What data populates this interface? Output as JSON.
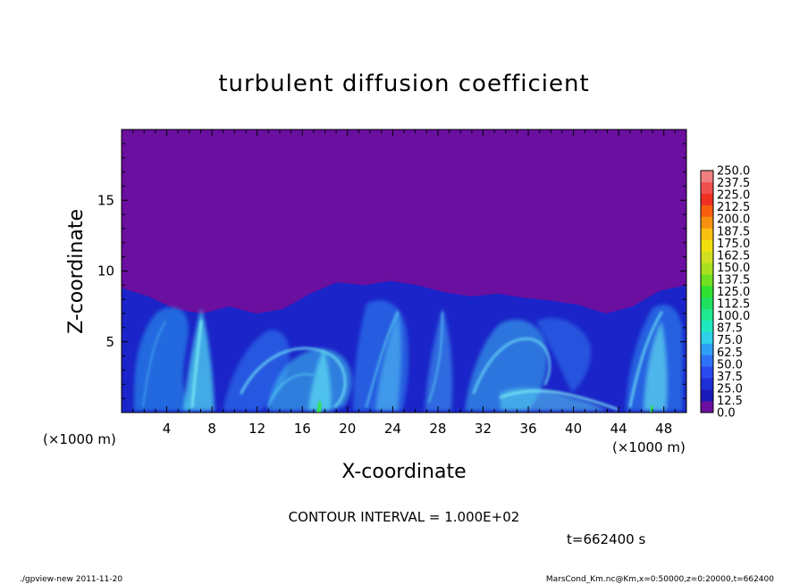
{
  "chart_data": {
    "type": "heatmap",
    "title": "turbulent diffusion coefficient",
    "xlabel": "X-coordinate",
    "ylabel": "Z-coordinate",
    "x_unit": "(×1000 m)",
    "y_unit": "(×1000 m)",
    "xlim": [
      0,
      50
    ],
    "ylim": [
      0,
      20
    ],
    "x_ticks": [
      4,
      8,
      12,
      16,
      20,
      24,
      28,
      32,
      36,
      40,
      44,
      48
    ],
    "y_ticks": [
      5,
      10,
      15
    ],
    "colorbar": {
      "levels": [
        "0.0",
        "12.5",
        "25.0",
        "37.5",
        "50.0",
        "62.5",
        "75.0",
        "87.5",
        "100.0",
        "112.5",
        "125.0",
        "137.5",
        "150.0",
        "162.5",
        "175.0",
        "187.5",
        "200.0",
        "212.5",
        "225.0",
        "237.5",
        "250.0"
      ],
      "colors": [
        "#6a0fa0",
        "#1a1ab8",
        "#1f2fd8",
        "#2a4af0",
        "#2d72f5",
        "#2ea0f5",
        "#2fd0e8",
        "#20e8c0",
        "#20e890",
        "#20e060",
        "#30e030",
        "#70e020",
        "#a8e020",
        "#d0e020",
        "#f0e010",
        "#f8c010",
        "#f89010",
        "#f86010",
        "#f03020",
        "#f05050",
        "#f08080"
      ]
    },
    "boundary_layer_top_km": [
      8.8,
      8.2,
      7.3,
      7.0,
      7.5,
      7.0,
      7.3,
      8.4,
      9.2,
      9.0,
      9.3,
      9.0,
      8.5,
      8.2,
      8.4,
      8.1,
      7.9,
      7.6,
      7.0,
      7.5,
      8.6,
      9.0
    ],
    "contour_interval": "CONTOUR INTERVAL = 1.000E+02",
    "time_label": "t=662400 s"
  },
  "footer": {
    "left": "./gpview-new  2011-11-20",
    "right": "MarsCond_Km.nc@Km,x=0:50000,z=0:20000,t=662400"
  }
}
